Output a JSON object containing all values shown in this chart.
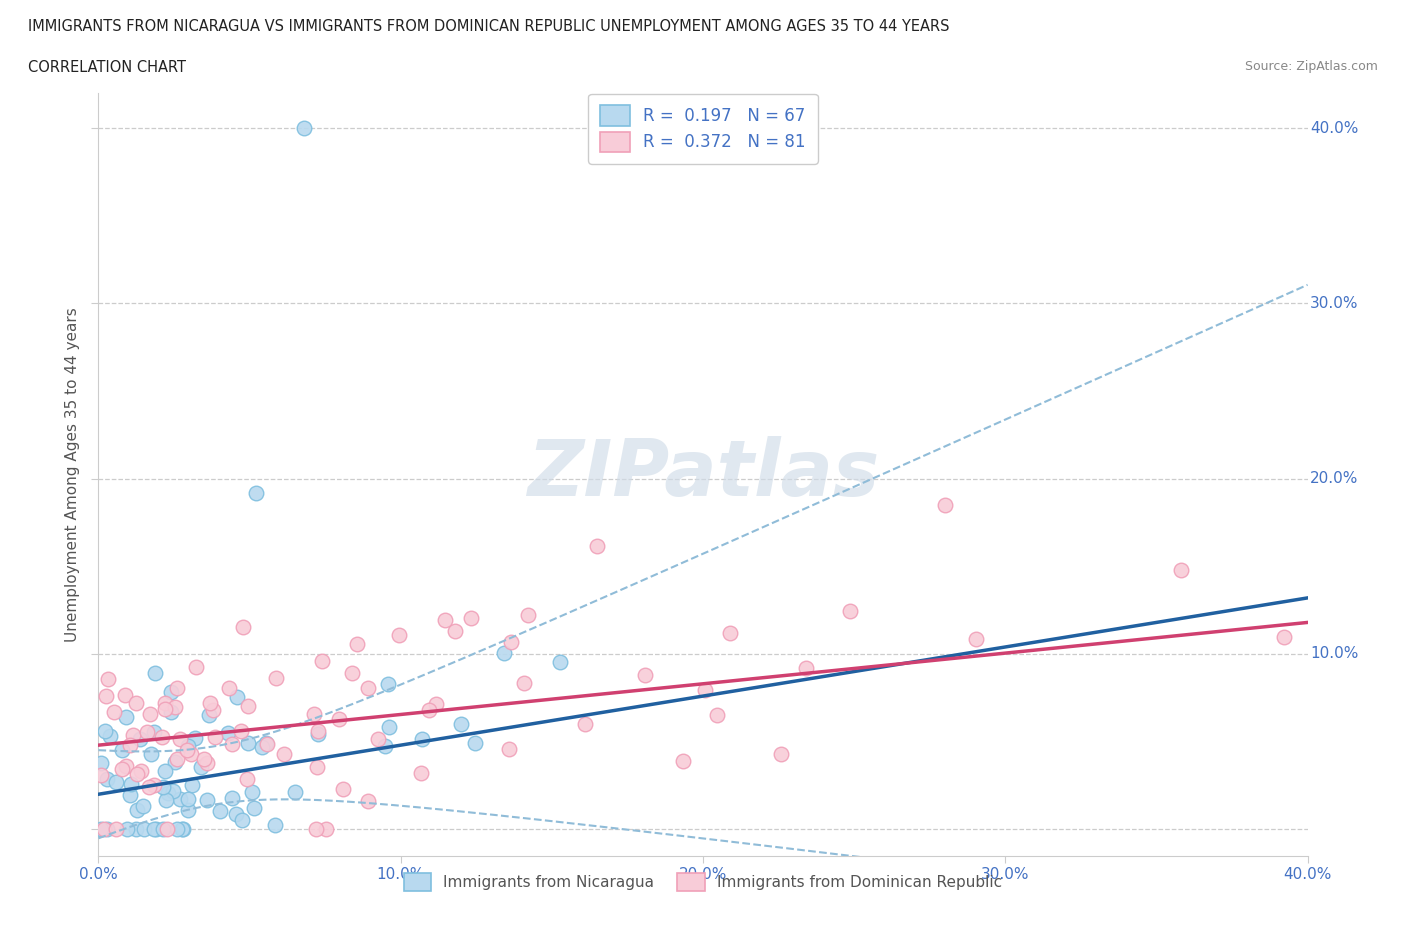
{
  "title_line1": "IMMIGRANTS FROM NICARAGUA VS IMMIGRANTS FROM DOMINICAN REPUBLIC UNEMPLOYMENT AMONG AGES 35 TO 44 YEARS",
  "title_line2": "CORRELATION CHART",
  "source_text": "Source: ZipAtlas.com",
  "ylabel": "Unemployment Among Ages 35 to 44 years",
  "xlim": [
    0.0,
    0.4
  ],
  "ylim": [
    -0.015,
    0.42
  ],
  "tick_vals": [
    0.0,
    0.1,
    0.2,
    0.3,
    0.4
  ],
  "tick_labels": [
    "0.0%",
    "10.0%",
    "20.0%",
    "30.0%",
    "40.0%"
  ],
  "watermark": "ZIPatlas",
  "nicaragua_color": "#7fbfdf",
  "nicaragua_color_fill": "#b8d9ef",
  "dominican_color": "#f0a0b8",
  "dominican_color_fill": "#f8ccd8",
  "regline_nic_color": "#2060a0",
  "regline_dom_color": "#d04070",
  "dashed_color": "#90bcd8",
  "legend_R_nicaragua": "0.197",
  "legend_N_nicaragua": "67",
  "legend_R_dominican": "0.372",
  "legend_N_dominican": "81",
  "legend_label_nicaragua": "Immigrants from Nicaragua",
  "legend_label_dominican": "Immigrants from Dominican Republic",
  "tick_color": "#4472c4"
}
